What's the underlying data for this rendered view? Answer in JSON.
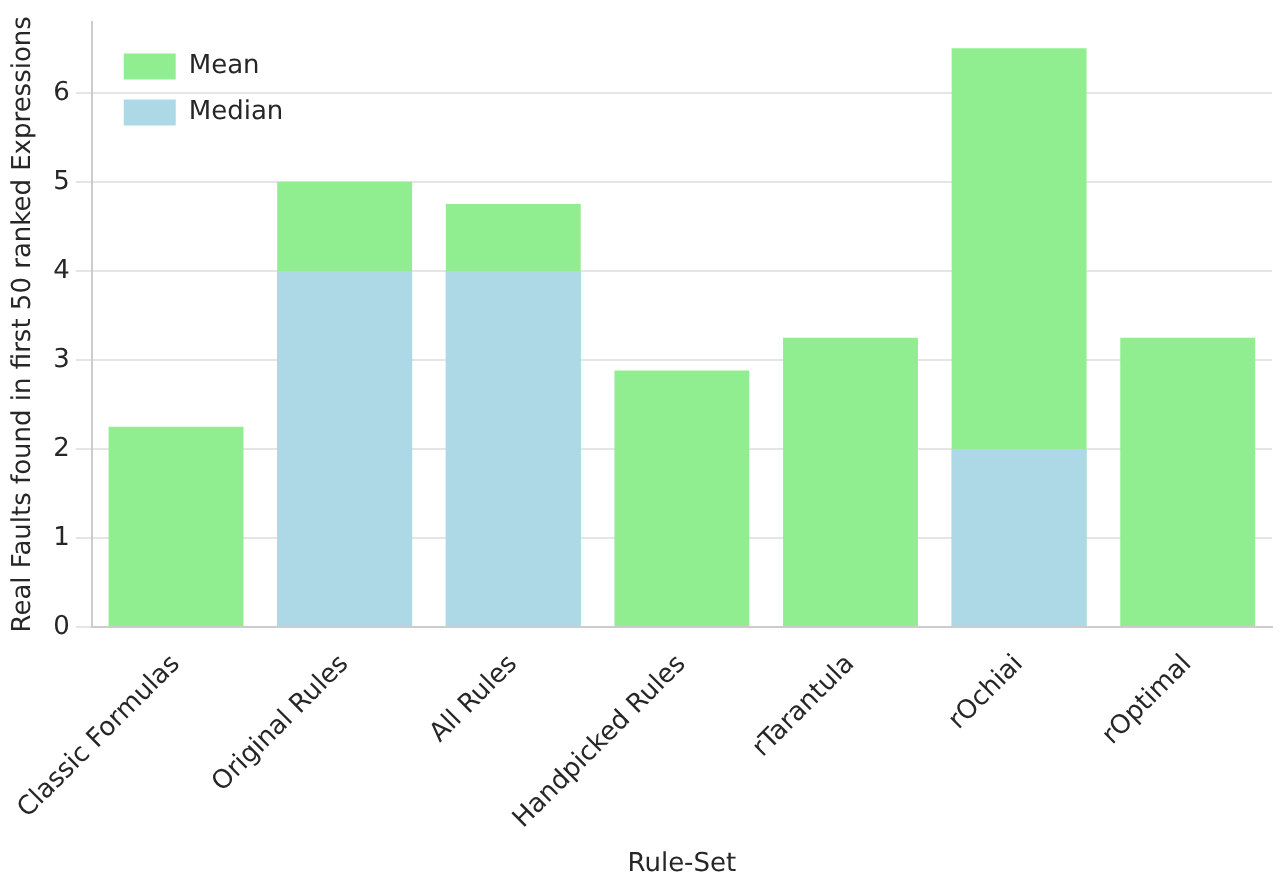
{
  "chart_data": {
    "type": "bar",
    "xlabel": "Rule-Set",
    "ylabel": "Real Faults found in first 50 ranked Expressions",
    "categories": [
      "Classic Formulas",
      "Original Rules",
      "All Rules",
      "Handpicked Rules",
      "rTarantula",
      "rOchiai",
      "rOptimal"
    ],
    "series": [
      {
        "name": "Mean",
        "color": "#90ee90",
        "values": [
          2.25,
          5.0,
          4.75,
          2.88,
          3.25,
          6.5,
          3.25
        ]
      },
      {
        "name": "Median",
        "color": "#add8e6",
        "values": [
          0,
          4,
          4,
          0,
          0,
          2,
          0
        ]
      }
    ],
    "ylim": [
      0,
      6.8
    ],
    "yticks": [
      0,
      1,
      2,
      3,
      4,
      5,
      6
    ],
    "grid": "y",
    "legend": "top left"
  }
}
